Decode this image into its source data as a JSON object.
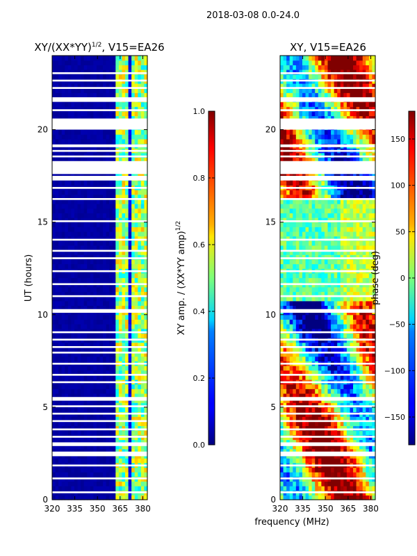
{
  "figure": {
    "suptitle": "2018-03-08 0.0-24.0",
    "shared_xlabel": "frequency (MHz)"
  },
  "chart_data": [
    {
      "type": "heatmap",
      "title": "XY/(XX*YY)",
      "title_exponent": "1/2",
      "title_suffix": ", V15=EA26",
      "xlabel": "",
      "ylabel": "UT (hours)",
      "x_range": [
        320,
        383
      ],
      "y_range": [
        0,
        24
      ],
      "xticks": [
        320,
        335,
        350,
        365,
        380
      ],
      "yticks": [
        0,
        5,
        10,
        15,
        20
      ],
      "active_band_mhz": [
        [
          363,
          372
        ],
        [
          372,
          379
        ],
        [
          379,
          383
        ]
      ],
      "flagged_hours": [
        [
          0.35,
          0.45
        ],
        [
          1.1,
          1.2
        ],
        [
          1.8,
          1.9
        ],
        [
          2.35,
          2.6
        ],
        [
          2.9,
          3.1
        ],
        [
          3.35,
          3.45
        ],
        [
          3.75,
          3.85
        ],
        [
          4.2,
          4.3
        ],
        [
          4.6,
          4.7
        ],
        [
          5.0,
          5.1
        ],
        [
          5.35,
          5.55
        ],
        [
          6.3,
          6.4
        ],
        [
          6.7,
          6.8
        ],
        [
          7.3,
          7.4
        ],
        [
          7.9,
          8.0
        ],
        [
          8.2,
          8.3
        ],
        [
          8.6,
          8.7
        ],
        [
          9.0,
          9.1
        ],
        [
          10.1,
          10.3
        ],
        [
          10.95,
          11.05
        ],
        [
          11.6,
          11.7
        ],
        [
          12.3,
          12.4
        ],
        [
          13.0,
          13.1
        ],
        [
          13.4,
          13.5
        ],
        [
          14.0,
          14.1
        ],
        [
          15.0,
          15.1
        ],
        [
          16.2,
          16.3
        ],
        [
          16.8,
          16.9
        ],
        [
          17.25,
          17.5
        ],
        [
          17.6,
          18.3
        ],
        [
          18.5,
          18.6
        ],
        [
          18.8,
          18.9
        ],
        [
          19.05,
          19.2
        ],
        [
          20.0,
          20.6
        ],
        [
          21.0,
          21.1
        ],
        [
          21.5,
          21.75
        ],
        [
          22.2,
          22.3
        ],
        [
          22.6,
          22.7
        ],
        [
          23.0,
          23.1
        ]
      ],
      "colorbar": {
        "label": "XY amp. / (XX*YY amp)",
        "label_exponent": "1/2",
        "range": [
          0.0,
          1.0
        ],
        "ticks": [
          "0.0",
          "0.2",
          "0.4",
          "0.6",
          "0.8",
          "1.0"
        ],
        "colormap": "jet"
      }
    },
    {
      "type": "heatmap",
      "title": "XY, V15=EA26",
      "xlabel": "",
      "ylabel": "",
      "x_range": [
        320,
        383
      ],
      "y_range": [
        0,
        24
      ],
      "xticks": [
        320,
        335,
        350,
        365,
        380
      ],
      "yticks": [
        0,
        5,
        10,
        15,
        20
      ],
      "flagged_hours": [
        [
          0.35,
          0.45
        ],
        [
          1.1,
          1.2
        ],
        [
          1.8,
          1.9
        ],
        [
          2.35,
          2.6
        ],
        [
          2.9,
          3.1
        ],
        [
          3.35,
          3.45
        ],
        [
          3.75,
          3.85
        ],
        [
          4.2,
          4.3
        ],
        [
          4.6,
          4.7
        ],
        [
          5.0,
          5.1
        ],
        [
          5.35,
          5.55
        ],
        [
          6.3,
          6.4
        ],
        [
          6.7,
          6.8
        ],
        [
          7.3,
          7.4
        ],
        [
          7.9,
          8.0
        ],
        [
          8.2,
          8.3
        ],
        [
          8.6,
          8.7
        ],
        [
          9.0,
          9.1
        ],
        [
          10.1,
          10.3
        ],
        [
          10.95,
          11.05
        ],
        [
          11.6,
          11.7
        ],
        [
          12.3,
          12.4
        ],
        [
          13.0,
          13.1
        ],
        [
          13.4,
          13.5
        ],
        [
          14.0,
          14.1
        ],
        [
          15.0,
          15.1
        ],
        [
          16.2,
          16.3
        ],
        [
          16.8,
          16.9
        ],
        [
          17.25,
          17.5
        ],
        [
          17.6,
          18.3
        ],
        [
          18.5,
          18.6
        ],
        [
          18.8,
          18.9
        ],
        [
          19.05,
          19.2
        ],
        [
          20.0,
          20.6
        ],
        [
          21.0,
          21.1
        ],
        [
          21.5,
          21.75
        ],
        [
          22.2,
          22.3
        ],
        [
          22.6,
          22.7
        ],
        [
          23.0,
          23.1
        ]
      ],
      "colorbar": {
        "label": "phase (deg)",
        "range": [
          -180,
          180
        ],
        "ticks": [
          "−150",
          "−100",
          "−50",
          "0",
          "50",
          "100",
          "150"
        ],
        "colormap": "jet"
      }
    }
  ]
}
